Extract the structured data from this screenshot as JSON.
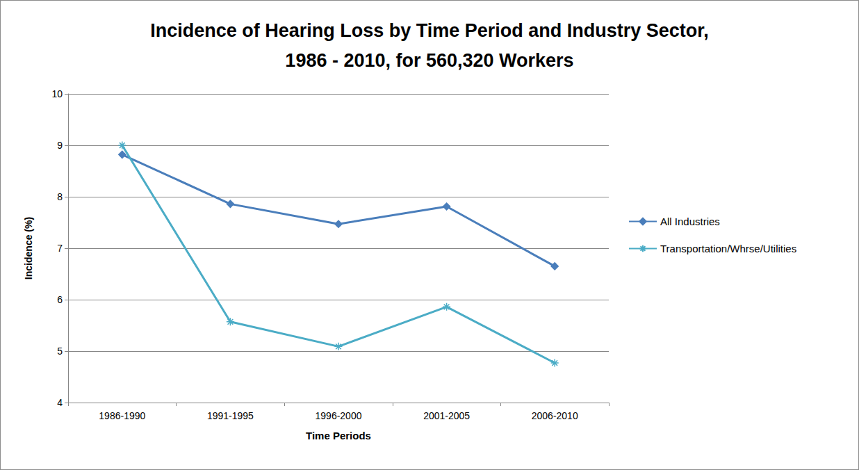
{
  "chart_data": {
    "type": "line",
    "title": "Incidence of Hearing Loss by Time Period and Industry Sector,\n1986 - 2010, for 560,320 Workers",
    "x_label": "Time Periods",
    "y_label": "Incidence (%)",
    "categories": [
      "1986-1990",
      "1991-1995",
      "1996-2000",
      "2001-2005",
      "2006-2010"
    ],
    "series": [
      {
        "name": "All Industries",
        "color": "#4a7ebb",
        "marker": "diamond",
        "values": [
          8.82,
          7.86,
          7.47,
          7.81,
          6.65
        ]
      },
      {
        "name": "Transportation/Whrse/Utilities",
        "color": "#4bacc6",
        "marker": "asterisk",
        "values": [
          9.0,
          5.57,
          5.09,
          5.86,
          4.77
        ]
      }
    ],
    "ylim": [
      4,
      10
    ],
    "yticks": [
      4,
      5,
      6,
      7,
      8,
      9,
      10
    ],
    "grid": true,
    "legend": "right"
  }
}
